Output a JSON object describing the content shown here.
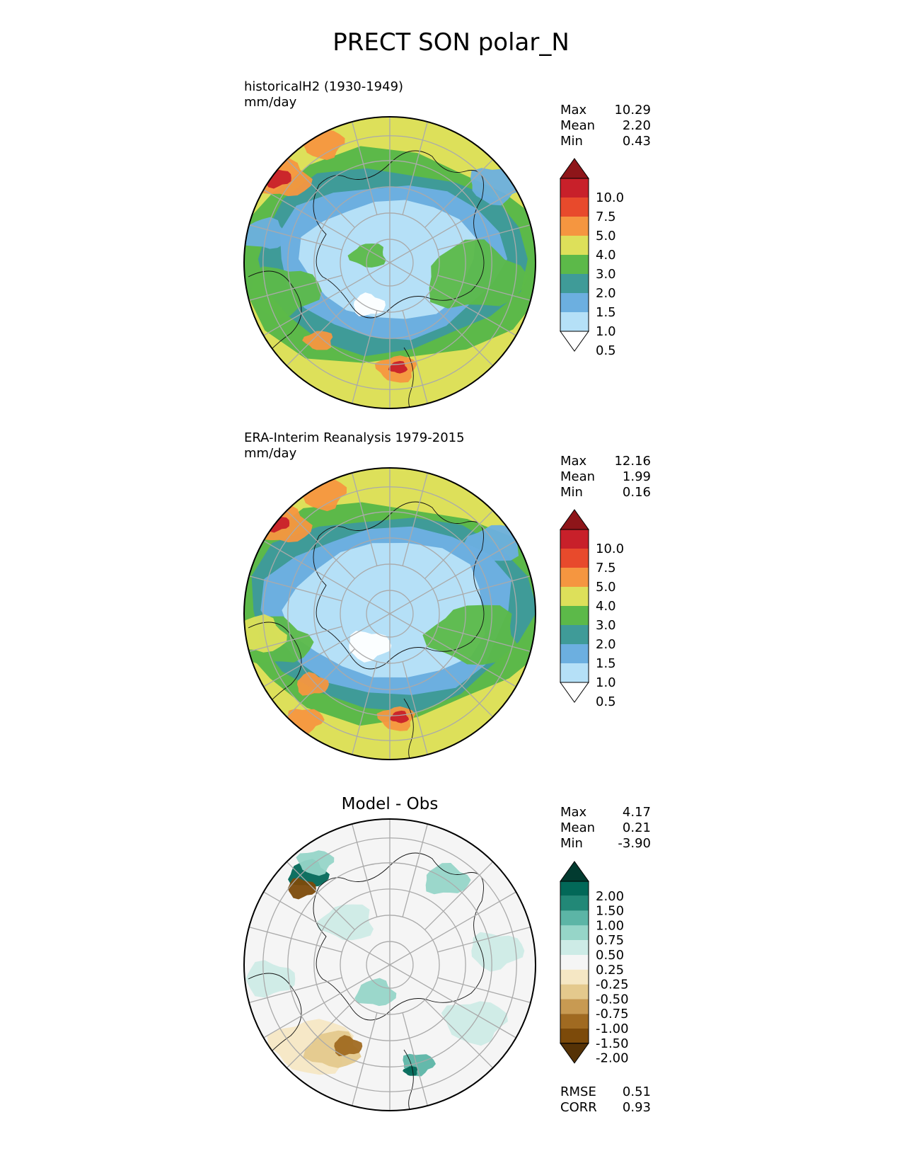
{
  "title": "PRECT SON polar_N",
  "panels": [
    {
      "id": "model",
      "title_line1": "historicalH2 (1930-1949)",
      "title_line2": "mm/day",
      "stats": [
        {
          "label": "Max",
          "value": "10.29"
        },
        {
          "label": "Mean",
          "value": "2.20"
        },
        {
          "label": "Min",
          "value": "0.43"
        }
      ],
      "colorbar": {
        "levels": [
          "10.0",
          "7.5",
          "5.0",
          "4.0",
          "3.0",
          "2.0",
          "1.5",
          "1.0",
          "0.5"
        ],
        "colors": [
          "#8e1519",
          "#c8202a",
          "#e84a2c",
          "#f59640",
          "#dde05a",
          "#5cb949",
          "#3f9b98",
          "#6cafe0",
          "#b5e0f7",
          "#ffffff"
        ]
      }
    },
    {
      "id": "obs",
      "title_line1": "ERA-Interim Reanalysis 1979-2015",
      "title_line2": "mm/day",
      "stats": [
        {
          "label": "Max",
          "value": "12.16"
        },
        {
          "label": "Mean",
          "value": "1.99"
        },
        {
          "label": "Min",
          "value": "0.16"
        }
      ],
      "colorbar": {
        "levels": [
          "10.0",
          "7.5",
          "5.0",
          "4.0",
          "3.0",
          "2.0",
          "1.5",
          "1.0",
          "0.5"
        ],
        "colors": [
          "#8e1519",
          "#c8202a",
          "#e84a2c",
          "#f59640",
          "#dde05a",
          "#5cb949",
          "#3f9b98",
          "#6cafe0",
          "#b5e0f7",
          "#ffffff"
        ]
      }
    },
    {
      "id": "diff",
      "title_center": "Model - Obs",
      "stats": [
        {
          "label": "Max",
          "value": "4.17"
        },
        {
          "label": "Mean",
          "value": "0.21"
        },
        {
          "label": "Min",
          "value": "-3.90"
        }
      ],
      "extra_stats": [
        {
          "label": "RMSE",
          "value": "0.51"
        },
        {
          "label": "CORR",
          "value": "0.93"
        }
      ],
      "colorbar": {
        "levels": [
          "2.00",
          "1.50",
          "1.00",
          "0.75",
          "0.50",
          "0.25",
          "-0.25",
          "-0.50",
          "-0.75",
          "-1.00",
          "-1.50",
          "-2.00"
        ],
        "colors": [
          "#023b30",
          "#026858",
          "#228877",
          "#5cb5a6",
          "#96d5c8",
          "#cdebe6",
          "#f5f5f5",
          "#f5e7c4",
          "#e4c98d",
          "#c89a52",
          "#a06a21",
          "#7c4a0a",
          "#553206"
        ]
      }
    }
  ]
}
